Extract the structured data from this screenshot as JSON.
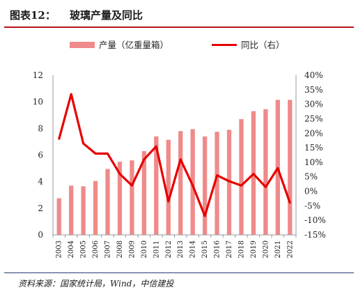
{
  "header": {
    "figure_label": "图表12：",
    "title": "玻璃产量及同比"
  },
  "source": {
    "text": "资料来源：国家统计局，Wind，中信建投"
  },
  "colors": {
    "bar": "#f08a8a",
    "line": "#e60000",
    "accent": "#b4161a"
  },
  "chart_data": {
    "type": "bar+line",
    "categories": [
      "2003",
      "2004",
      "2005",
      "2006",
      "2007",
      "2008",
      "2009",
      "2010",
      "2011",
      "2012",
      "2013",
      "2014",
      "2015",
      "2016",
      "2017",
      "2018",
      "2019",
      "2020",
      "2021",
      "2022"
    ],
    "series": [
      {
        "name": "产量（亿重量箱）",
        "type": "bar",
        "axis": "left",
        "values": [
          2.75,
          3.7,
          3.65,
          4.05,
          4.95,
          5.5,
          5.6,
          6.3,
          7.4,
          7.15,
          7.8,
          7.95,
          7.4,
          7.75,
          7.9,
          8.7,
          9.3,
          9.45,
          10.15,
          10.15
        ]
      },
      {
        "name": "同比（右）",
        "type": "line",
        "axis": "right",
        "values": [
          18,
          33.5,
          16.5,
          13,
          13,
          6,
          2,
          11,
          15.5,
          -3.5,
          11,
          2,
          -8.5,
          5.5,
          3.5,
          2,
          6,
          1.5,
          8,
          -4
        ]
      }
    ],
    "ylim_left": [
      0,
      12
    ],
    "yticks_left": [
      "0",
      "2",
      "4",
      "6",
      "8",
      "10",
      "12"
    ],
    "ylim_right": [
      -15,
      40
    ],
    "yticks_right": [
      "-15%",
      "-10%",
      "-5%",
      "0%",
      "5%",
      "10%",
      "15%",
      "20%",
      "25%",
      "30%",
      "35%",
      "40%"
    ],
    "legend_position": "top",
    "grid": false
  }
}
